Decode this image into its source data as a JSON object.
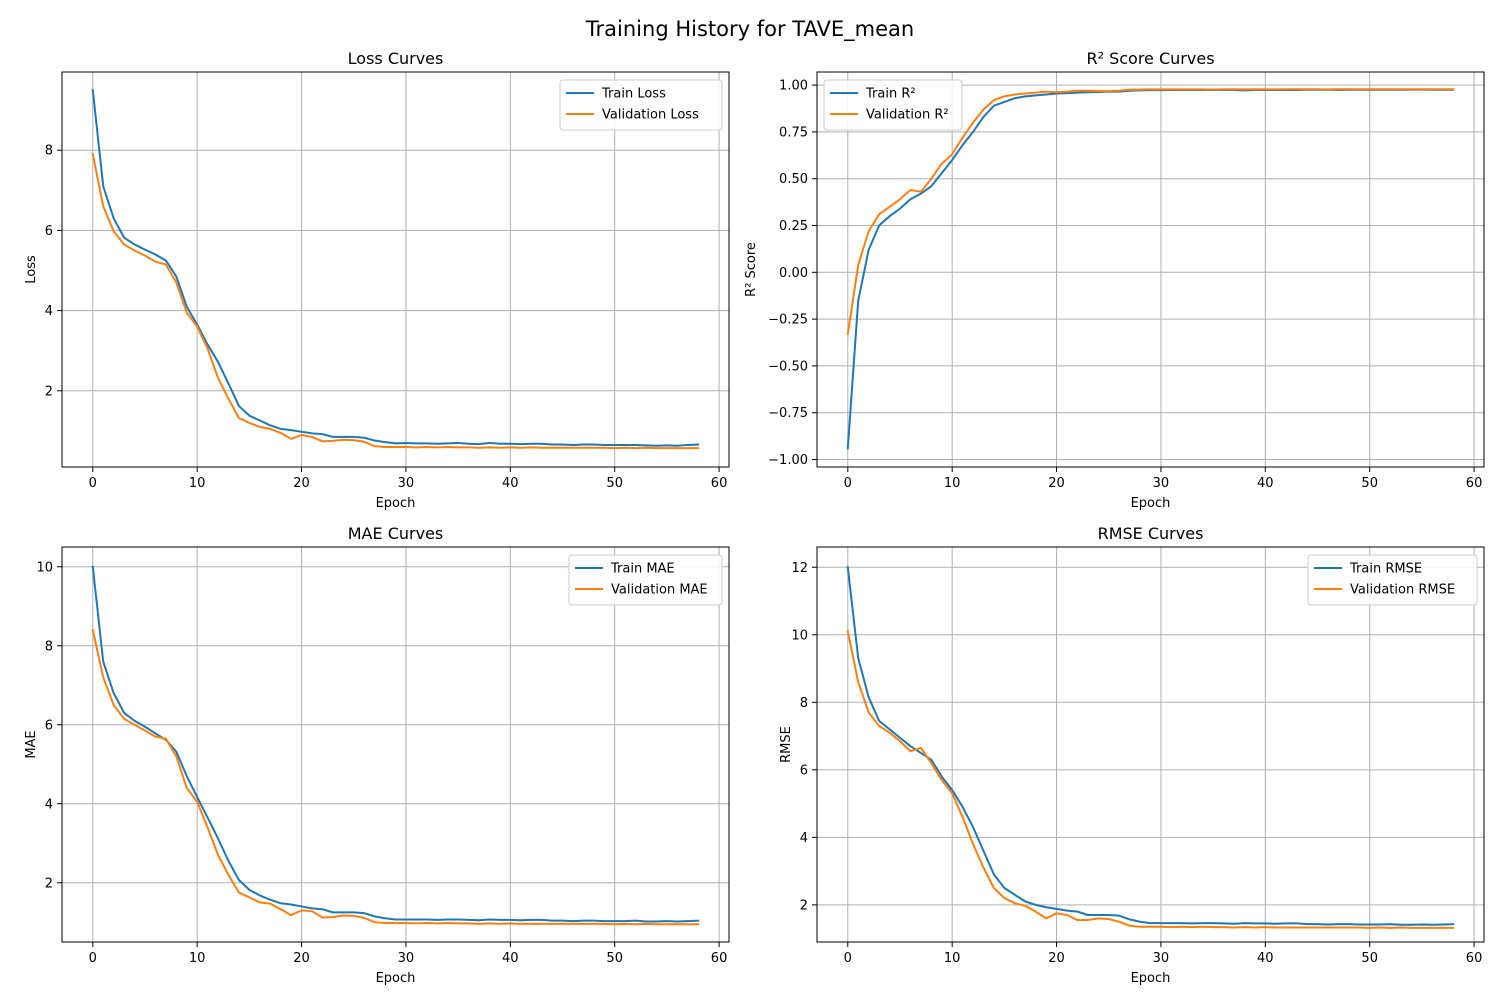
{
  "figure": {
    "suptitle": "Training History for TAVE_mean"
  },
  "colors": {
    "train": "#1f77b4",
    "validation": "#ff7f0e",
    "grid": "#b0b0b0",
    "legend_border": "#cccccc"
  },
  "chart_data": [
    {
      "type": "line",
      "title": "Loss Curves",
      "xlabel": "Epoch",
      "ylabel": "Loss",
      "xlim": [
        -2.95,
        60.95
      ],
      "ylim": [
        0.1,
        9.95
      ],
      "xticks": [
        0,
        10,
        20,
        30,
        40,
        50,
        60
      ],
      "yticks": [
        2,
        4,
        6,
        8
      ],
      "grid": true,
      "legend": "top-right",
      "x": [
        0,
        1,
        2,
        3,
        4,
        5,
        6,
        7,
        8,
        9,
        10,
        11,
        12,
        13,
        14,
        15,
        16,
        17,
        18,
        19,
        20,
        21,
        22,
        23,
        24,
        25,
        26,
        27,
        28,
        29,
        30,
        31,
        32,
        33,
        34,
        35,
        36,
        37,
        38,
        39,
        40,
        41,
        42,
        43,
        44,
        45,
        46,
        47,
        48,
        49,
        50,
        51,
        52,
        53,
        54,
        55,
        56,
        57,
        58
      ],
      "series": [
        {
          "name": "Train Loss",
          "key": "train",
          "values": [
            9.5,
            7.1,
            6.3,
            5.82,
            5.65,
            5.52,
            5.4,
            5.25,
            4.85,
            4.1,
            3.65,
            3.15,
            2.72,
            2.18,
            1.62,
            1.38,
            1.26,
            1.14,
            1.05,
            1.02,
            0.98,
            0.94,
            0.92,
            0.85,
            0.85,
            0.85,
            0.83,
            0.76,
            0.72,
            0.69,
            0.7,
            0.69,
            0.69,
            0.68,
            0.69,
            0.7,
            0.68,
            0.67,
            0.7,
            0.68,
            0.68,
            0.67,
            0.68,
            0.68,
            0.66,
            0.66,
            0.65,
            0.66,
            0.66,
            0.65,
            0.65,
            0.65,
            0.65,
            0.64,
            0.63,
            0.64,
            0.63,
            0.65,
            0.66
          ]
        },
        {
          "name": "Validation Loss",
          "key": "validation",
          "values": [
            7.9,
            6.6,
            5.98,
            5.65,
            5.5,
            5.37,
            5.22,
            5.15,
            4.7,
            3.95,
            3.6,
            3.05,
            2.32,
            1.8,
            1.32,
            1.2,
            1.1,
            1.05,
            0.95,
            0.8,
            0.9,
            0.85,
            0.74,
            0.75,
            0.78,
            0.77,
            0.73,
            0.62,
            0.6,
            0.6,
            0.6,
            0.59,
            0.6,
            0.59,
            0.6,
            0.59,
            0.59,
            0.58,
            0.59,
            0.58,
            0.59,
            0.58,
            0.59,
            0.58,
            0.58,
            0.58,
            0.58,
            0.58,
            0.58,
            0.58,
            0.57,
            0.58,
            0.57,
            0.58,
            0.57,
            0.57,
            0.57,
            0.57,
            0.57
          ]
        }
      ]
    },
    {
      "type": "line",
      "title": "R² Score Curves",
      "xlabel": "Epoch",
      "ylabel": "R² Score",
      "xlim": [
        -2.95,
        60.95
      ],
      "ylim": [
        -1.04,
        1.07
      ],
      "xticks": [
        0,
        10,
        20,
        30,
        40,
        50,
        60
      ],
      "yticks": [
        -1.0,
        -0.75,
        -0.5,
        -0.25,
        0.0,
        0.25,
        0.5,
        0.75,
        1.0
      ],
      "ytick_labels": [
        "−1.00",
        "−0.75",
        "−0.50",
        "−0.25",
        "0.00",
        "0.25",
        "0.50",
        "0.75",
        "1.00"
      ],
      "grid": true,
      "legend": "top-left",
      "x": [
        0,
        1,
        2,
        3,
        4,
        5,
        6,
        7,
        8,
        9,
        10,
        11,
        12,
        13,
        14,
        15,
        16,
        17,
        18,
        19,
        20,
        21,
        22,
        23,
        24,
        25,
        26,
        27,
        28,
        29,
        30,
        31,
        32,
        33,
        34,
        35,
        36,
        37,
        38,
        39,
        40,
        41,
        42,
        43,
        44,
        45,
        46,
        47,
        48,
        49,
        50,
        51,
        52,
        53,
        54,
        55,
        56,
        57,
        58
      ],
      "series": [
        {
          "name": "Train R²",
          "key": "train",
          "values": [
            -0.94,
            -0.15,
            0.12,
            0.25,
            0.3,
            0.34,
            0.39,
            0.42,
            0.46,
            0.53,
            0.6,
            0.68,
            0.75,
            0.83,
            0.89,
            0.91,
            0.93,
            0.94,
            0.945,
            0.95,
            0.955,
            0.957,
            0.96,
            0.962,
            0.963,
            0.965,
            0.965,
            0.97,
            0.972,
            0.973,
            0.973,
            0.974,
            0.974,
            0.974,
            0.974,
            0.974,
            0.974,
            0.974,
            0.972,
            0.974,
            0.974,
            0.974,
            0.974,
            0.974,
            0.975,
            0.975,
            0.975,
            0.974,
            0.975,
            0.975,
            0.976,
            0.975,
            0.975,
            0.975,
            0.976,
            0.976,
            0.975,
            0.976,
            0.975
          ]
        },
        {
          "name": "Validation R²",
          "key": "validation",
          "values": [
            -0.33,
            0.04,
            0.22,
            0.31,
            0.35,
            0.39,
            0.44,
            0.43,
            0.5,
            0.58,
            0.63,
            0.72,
            0.8,
            0.87,
            0.92,
            0.94,
            0.95,
            0.955,
            0.96,
            0.965,
            0.962,
            0.965,
            0.97,
            0.97,
            0.968,
            0.968,
            0.97,
            0.975,
            0.976,
            0.977,
            0.977,
            0.977,
            0.977,
            0.977,
            0.977,
            0.976,
            0.977,
            0.978,
            0.977,
            0.978,
            0.977,
            0.977,
            0.978,
            0.978,
            0.978,
            0.978,
            0.977,
            0.978,
            0.978,
            0.978,
            0.978,
            0.978,
            0.978,
            0.978,
            0.978,
            0.978,
            0.978,
            0.978,
            0.978
          ]
        }
      ]
    },
    {
      "type": "line",
      "title": "MAE Curves",
      "xlabel": "Epoch",
      "ylabel": "MAE",
      "xlim": [
        -2.95,
        60.95
      ],
      "ylim": [
        0.5,
        10.5
      ],
      "xticks": [
        0,
        10,
        20,
        30,
        40,
        50,
        60
      ],
      "yticks": [
        2,
        4,
        6,
        8,
        10
      ],
      "grid": true,
      "legend": "top-right",
      "x": [
        0,
        1,
        2,
        3,
        4,
        5,
        6,
        7,
        8,
        9,
        10,
        11,
        12,
        13,
        14,
        15,
        16,
        17,
        18,
        19,
        20,
        21,
        22,
        23,
        24,
        25,
        26,
        27,
        28,
        29,
        30,
        31,
        32,
        33,
        34,
        35,
        36,
        37,
        38,
        39,
        40,
        41,
        42,
        43,
        44,
        45,
        46,
        47,
        48,
        49,
        50,
        51,
        52,
        53,
        54,
        55,
        56,
        57,
        58
      ],
      "series": [
        {
          "name": "Train MAE",
          "key": "train",
          "values": [
            10.0,
            7.6,
            6.8,
            6.3,
            6.1,
            5.95,
            5.78,
            5.62,
            5.32,
            4.7,
            4.17,
            3.65,
            3.12,
            2.55,
            2.07,
            1.82,
            1.68,
            1.57,
            1.48,
            1.45,
            1.4,
            1.35,
            1.33,
            1.25,
            1.25,
            1.25,
            1.23,
            1.15,
            1.1,
            1.07,
            1.07,
            1.07,
            1.07,
            1.06,
            1.07,
            1.07,
            1.06,
            1.05,
            1.07,
            1.06,
            1.06,
            1.05,
            1.06,
            1.06,
            1.04,
            1.04,
            1.03,
            1.04,
            1.04,
            1.03,
            1.03,
            1.03,
            1.04,
            1.02,
            1.02,
            1.03,
            1.02,
            1.03,
            1.04
          ]
        },
        {
          "name": "Validation MAE",
          "key": "validation",
          "values": [
            8.4,
            7.2,
            6.5,
            6.15,
            6.0,
            5.85,
            5.7,
            5.65,
            5.2,
            4.4,
            4.05,
            3.4,
            2.7,
            2.2,
            1.75,
            1.63,
            1.5,
            1.47,
            1.33,
            1.18,
            1.3,
            1.28,
            1.12,
            1.13,
            1.17,
            1.16,
            1.11,
            1.0,
            0.98,
            0.98,
            0.98,
            0.97,
            0.98,
            0.97,
            0.98,
            0.97,
            0.97,
            0.96,
            0.97,
            0.96,
            0.97,
            0.96,
            0.96,
            0.96,
            0.96,
            0.96,
            0.96,
            0.96,
            0.96,
            0.96,
            0.95,
            0.96,
            0.95,
            0.96,
            0.95,
            0.95,
            0.95,
            0.95,
            0.95
          ]
        }
      ]
    },
    {
      "type": "line",
      "title": "RMSE Curves",
      "xlabel": "Epoch",
      "ylabel": "RMSE",
      "xlim": [
        -2.95,
        60.95
      ],
      "ylim": [
        0.9,
        12.6
      ],
      "xticks": [
        0,
        10,
        20,
        30,
        40,
        50,
        60
      ],
      "yticks": [
        2,
        4,
        6,
        8,
        10,
        12
      ],
      "grid": true,
      "legend": "top-right",
      "x": [
        0,
        1,
        2,
        3,
        4,
        5,
        6,
        7,
        8,
        9,
        10,
        11,
        12,
        13,
        14,
        15,
        16,
        17,
        18,
        19,
        20,
        21,
        22,
        23,
        24,
        25,
        26,
        27,
        28,
        29,
        30,
        31,
        32,
        33,
        34,
        35,
        36,
        37,
        38,
        39,
        40,
        41,
        42,
        43,
        44,
        45,
        46,
        47,
        48,
        49,
        50,
        51,
        52,
        53,
        54,
        55,
        56,
        57,
        58
      ],
      "series": [
        {
          "name": "Train RMSE",
          "key": "train",
          "values": [
            12.0,
            9.3,
            8.15,
            7.45,
            7.2,
            6.95,
            6.7,
            6.5,
            6.3,
            5.8,
            5.4,
            4.9,
            4.3,
            3.6,
            2.9,
            2.5,
            2.3,
            2.1,
            2.0,
            1.93,
            1.88,
            1.83,
            1.8,
            1.7,
            1.7,
            1.7,
            1.68,
            1.57,
            1.5,
            1.46,
            1.46,
            1.46,
            1.46,
            1.45,
            1.46,
            1.46,
            1.45,
            1.44,
            1.46,
            1.45,
            1.45,
            1.44,
            1.45,
            1.45,
            1.43,
            1.43,
            1.42,
            1.43,
            1.43,
            1.42,
            1.42,
            1.42,
            1.43,
            1.41,
            1.41,
            1.42,
            1.41,
            1.42,
            1.43
          ]
        },
        {
          "name": "Validation RMSE",
          "key": "validation",
          "values": [
            10.1,
            8.6,
            7.7,
            7.3,
            7.1,
            6.85,
            6.55,
            6.65,
            6.2,
            5.7,
            5.3,
            4.6,
            3.8,
            3.1,
            2.5,
            2.2,
            2.05,
            1.97,
            1.8,
            1.6,
            1.75,
            1.7,
            1.55,
            1.55,
            1.6,
            1.58,
            1.5,
            1.38,
            1.35,
            1.35,
            1.35,
            1.34,
            1.35,
            1.34,
            1.35,
            1.34,
            1.34,
            1.33,
            1.34,
            1.33,
            1.34,
            1.33,
            1.33,
            1.33,
            1.33,
            1.33,
            1.33,
            1.33,
            1.33,
            1.33,
            1.32,
            1.33,
            1.32,
            1.33,
            1.32,
            1.32,
            1.32,
            1.32,
            1.32
          ]
        }
      ]
    }
  ]
}
